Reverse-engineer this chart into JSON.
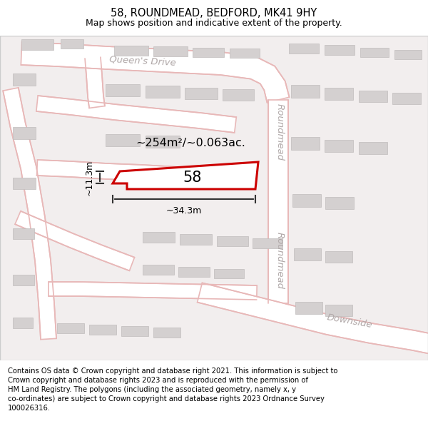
{
  "title": "58, ROUNDMEAD, BEDFORD, MK41 9HY",
  "subtitle": "Map shows position and indicative extent of the property.",
  "footer": "Contains OS data © Crown copyright and database right 2021. This information is subject to\nCrown copyright and database rights 2023 and is reproduced with the permission of\nHM Land Registry. The polygons (including the associated geometry, namely x, y\nco-ordinates) are subject to Crown copyright and database rights 2023 Ordnance Survey\n100026316.",
  "bg_color": "#f5f0f0",
  "map_bg": "#f2eeee",
  "road_fill": "#ffffff",
  "road_edge": "#e8b8b8",
  "building_color": "#d4d0d0",
  "highlight_color": "#cc0000",
  "highlight_fill": "#ffffff",
  "area_label": "~254m²/~0.063ac.",
  "property_number": "58",
  "dim_width": "~34.3m",
  "dim_height": "~11.3m",
  "queens_drive_label": "Queen's Drive",
  "roundmead_label": "Roundmead",
  "downside_label": "Downside",
  "title_fontsize": 10.5,
  "subtitle_fontsize": 9,
  "footer_fontsize": 7.2,
  "road_label_color": "#b0a8a8",
  "road_label_fontsize": 9.5
}
